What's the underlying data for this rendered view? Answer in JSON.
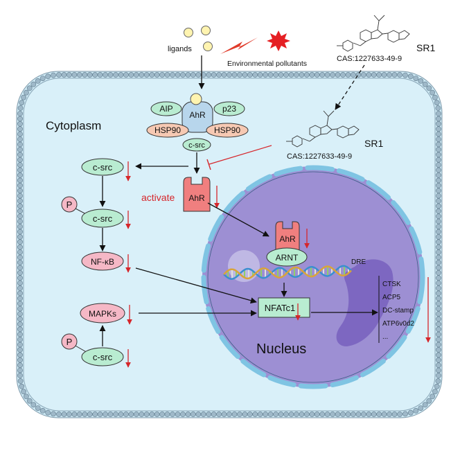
{
  "labels": {
    "ligands": "ligands",
    "pollutants": "Environmental pollutants",
    "sr1": "SR1",
    "cas": "CAS:1227633-49-9",
    "cytoplasm": "Cytoplasm",
    "nucleus": "Nucleus",
    "aip": "AIP",
    "p23": "p23",
    "ahr": "AhR",
    "hsp90": "HSP90",
    "csrc": "c-src",
    "activate": "activate",
    "arnt": "ARNT",
    "dre": "DRE",
    "nfkb": "NF-κB",
    "mapks": "MAPKs",
    "nfatc1": "NFATc1",
    "p": "P"
  },
  "target_genes": [
    "CTSK",
    "ACP5",
    "DC-stamp",
    "ATP6v0d2",
    "..."
  ],
  "colors": {
    "cell_fill": "#cfeaf5",
    "membrane_head": "#9fb9c9",
    "nucleus_fill": "#9d8fd3",
    "nucleus_envelope": "#7fc4e3",
    "chromatin": "#7a63bf",
    "green_protein": "#b9ecd1",
    "pink_protein": "#f5b8c6",
    "salmon_protein": "#f6c9b3",
    "ahr_blue": "#b8d6ec",
    "ahr_red": "#f07f7f",
    "ligand_yellow": "#fff4b0",
    "down_arrow_red": "#d6262b",
    "inhibit_red": "#d6262b"
  }
}
